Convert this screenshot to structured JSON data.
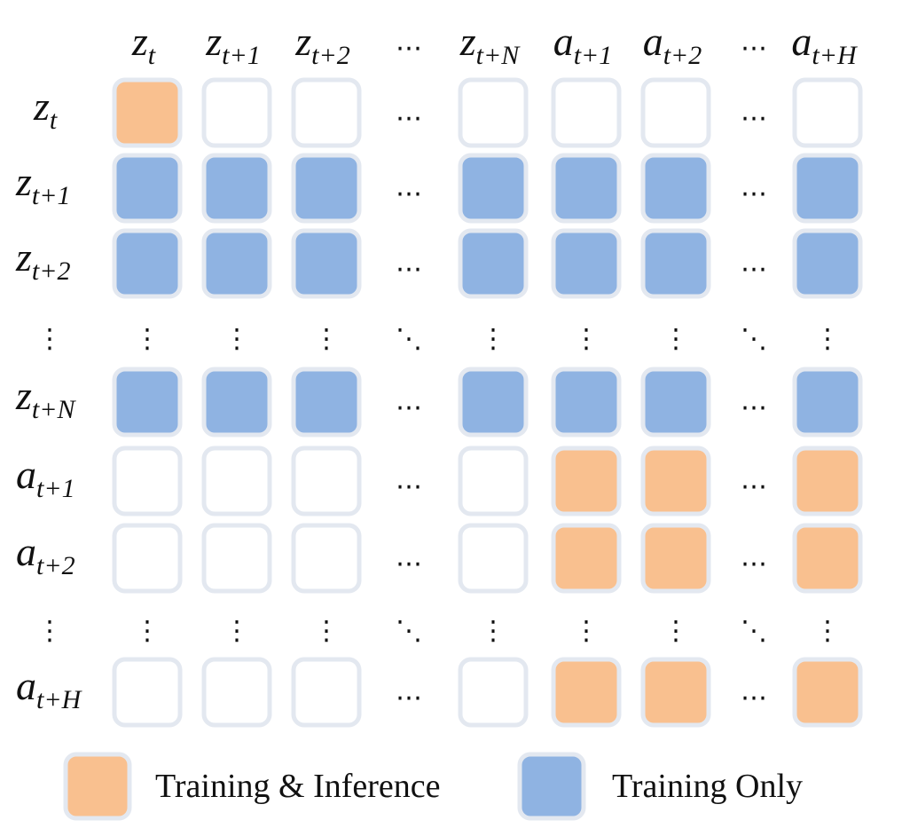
{
  "columns": [
    {
      "base": "z",
      "sub": "t"
    },
    {
      "base": "z",
      "sub": "t+1"
    },
    {
      "base": "z",
      "sub": "t+2"
    },
    {
      "ellipsis": true
    },
    {
      "base": "z",
      "sub": "t+N"
    },
    {
      "base": "a",
      "sub": "t+1"
    },
    {
      "base": "a",
      "sub": "t+2"
    },
    {
      "ellipsis": true
    },
    {
      "base": "a",
      "sub": "t+H"
    }
  ],
  "rows": [
    {
      "base": "z",
      "sub": "t",
      "cells": [
        "O",
        "E",
        "E",
        "…",
        "E",
        "E",
        "E",
        "…",
        "E"
      ]
    },
    {
      "base": "z",
      "sub": "t+1",
      "cells": [
        "B",
        "B",
        "B",
        "…",
        "B",
        "B",
        "B",
        "…",
        "B"
      ]
    },
    {
      "base": "z",
      "sub": "t+2",
      "cells": [
        "B",
        "B",
        "B",
        "…",
        "B",
        "B",
        "B",
        "…",
        "B"
      ]
    },
    {
      "ellipsis": true,
      "cells": [
        "⋮",
        "⋮",
        "⋮",
        "⋱",
        "⋮",
        "⋮",
        "⋮",
        "⋱",
        "⋮"
      ]
    },
    {
      "base": "z",
      "sub": "t+N",
      "cells": [
        "B",
        "B",
        "B",
        "…",
        "B",
        "B",
        "B",
        "…",
        "B"
      ]
    },
    {
      "base": "a",
      "sub": "t+1",
      "cells": [
        "E",
        "E",
        "E",
        "…",
        "E",
        "O",
        "O",
        "…",
        "O"
      ]
    },
    {
      "base": "a",
      "sub": "t+2",
      "cells": [
        "E",
        "E",
        "E",
        "…",
        "E",
        "O",
        "O",
        "…",
        "O"
      ]
    },
    {
      "ellipsis": true,
      "cells": [
        "⋮",
        "⋮",
        "⋮",
        "⋱",
        "⋮",
        "⋮",
        "⋮",
        "⋱",
        "⋮"
      ]
    },
    {
      "base": "a",
      "sub": "t+H",
      "cells": [
        "E",
        "E",
        "E",
        "…",
        "E",
        "O",
        "O",
        "…",
        "O"
      ]
    }
  ],
  "legend": [
    {
      "key": "O",
      "label": "Training & Inference"
    },
    {
      "key": "B",
      "label": "Training Only"
    }
  ],
  "colors": {
    "O": "#f9c08f",
    "B": "#8fb3e2",
    "E": "#ffffff",
    "border": "#e3e8f0"
  },
  "ellipsis_glyphs": {
    "h": "…",
    "v": "⋮",
    "d": "⋱"
  }
}
